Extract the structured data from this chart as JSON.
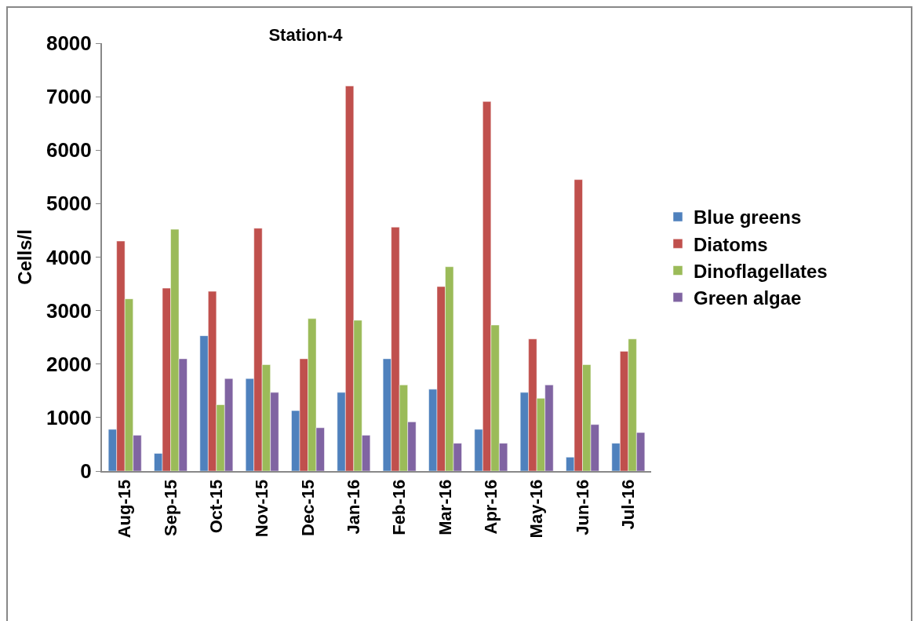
{
  "chart_data": {
    "type": "bar",
    "title": "Station-4",
    "ylabel": "Cells/l",
    "categories": [
      "Aug-15",
      "Sep-15",
      "Oct-15",
      "Nov-15",
      "Dec-15",
      "Jan-16",
      "Feb-16",
      "Mar-16",
      "Apr-16",
      "May-16",
      "Jun-16",
      "Jul-16"
    ],
    "series": [
      {
        "name": "Blue greens",
        "color": "#4f81bd",
        "values": [
          780,
          330,
          2530,
          1730,
          1130,
          1470,
          2100,
          1530,
          780,
          1470,
          260,
          520
        ]
      },
      {
        "name": "Diatoms",
        "color": "#c0504d",
        "values": [
          4300,
          3420,
          3360,
          4540,
          2100,
          7200,
          4560,
          3450,
          6910,
          2470,
          5450,
          2240
        ]
      },
      {
        "name": "Dinoflagellates",
        "color": "#9bbb59",
        "values": [
          3220,
          4520,
          1240,
          1990,
          2850,
          2820,
          1610,
          3820,
          2730,
          1360,
          1990,
          2470
        ]
      },
      {
        "name": "Green algae",
        "color": "#8064a2",
        "values": [
          670,
          2100,
          1730,
          1470,
          810,
          670,
          920,
          520,
          520,
          1610,
          870,
          720
        ]
      }
    ],
    "ylim": [
      0,
      8000
    ],
    "yticks": [
      0,
      1000,
      2000,
      3000,
      4000,
      5000,
      6000,
      7000,
      8000
    ],
    "grid": false,
    "legend": "right"
  }
}
